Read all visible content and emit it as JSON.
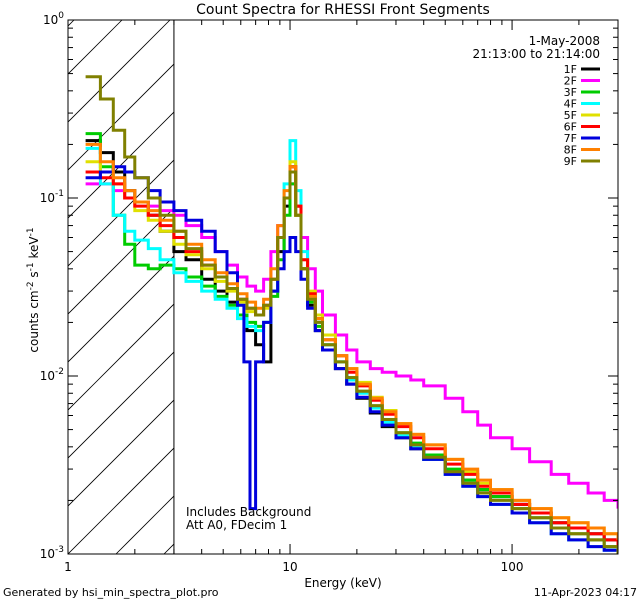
{
  "chart_data": {
    "type": "line",
    "title": "Count Spectra for RHESSI Front Segments",
    "xlabel": "Energy (keV)",
    "ylabel": {
      "base": "counts cm",
      "exp1": "-2",
      "mid1": " s",
      "exp2": "-1",
      "mid2": " keV",
      "exp3": "-1"
    },
    "xscale": "log",
    "yscale": "log",
    "xlim": [
      1,
      300
    ],
    "ylim": [
      0.001,
      1
    ],
    "x_ticks": [
      {
        "value": 1,
        "label": "1"
      },
      {
        "value": 10,
        "label": "10"
      },
      {
        "value": 100,
        "label": "100"
      }
    ],
    "y_ticks": [
      {
        "value": 1,
        "mant": "10",
        "exp": "0"
      },
      {
        "value": 0.1,
        "mant": "10",
        "exp": "-1"
      },
      {
        "value": 0.01,
        "mant": "10",
        "exp": "-2"
      },
      {
        "value": 0.001,
        "mant": "10",
        "exp": "-3"
      }
    ],
    "date": "1-May-2008",
    "time_range": "21:13:00 to 21:14:00",
    "annotations": [
      "Includes Background",
      "Att A0, FDecim 1"
    ],
    "hatched_region_xmax": 3,
    "series": [
      {
        "name": "1F",
        "color": "#000000",
        "e": [
          1.2,
          1.4,
          1.6,
          1.8,
          2.0,
          2.3,
          2.6,
          3.0,
          3.4,
          4.0,
          4.6,
          5.2,
          5.8,
          6.4,
          7.0,
          7.6,
          8.2,
          8.8,
          9.4,
          10.0,
          10.6,
          11.2,
          12,
          13,
          14,
          16,
          18,
          20,
          23,
          26,
          30,
          35,
          40,
          50,
          60,
          70,
          80,
          100,
          120,
          150,
          180,
          220,
          260,
          300
        ],
        "v": [
          0.21,
          0.18,
          0.14,
          0.11,
          0.095,
          0.08,
          0.065,
          0.05,
          0.045,
          0.035,
          0.03,
          0.026,
          0.022,
          0.018,
          0.015,
          0.012,
          0.03,
          0.05,
          0.09,
          0.15,
          0.09,
          0.04,
          0.025,
          0.018,
          0.014,
          0.011,
          0.009,
          0.0075,
          0.0062,
          0.0052,
          0.0045,
          0.0039,
          0.0034,
          0.0029,
          0.0026,
          0.0023,
          0.0021,
          0.0019,
          0.0017,
          0.0015,
          0.0014,
          0.0013,
          0.0012,
          0.0011
        ]
      },
      {
        "name": "2F",
        "color": "#ff00ff",
        "e": [
          1.2,
          1.4,
          1.6,
          1.8,
          2.0,
          2.3,
          2.6,
          3.0,
          3.4,
          4.0,
          4.6,
          5.2,
          5.8,
          6.4,
          7.0,
          7.6,
          8.2,
          8.8,
          9.4,
          10.0,
          10.6,
          11.2,
          12,
          13,
          14,
          16,
          18,
          20,
          23,
          26,
          30,
          35,
          40,
          50,
          60,
          70,
          80,
          100,
          120,
          150,
          180,
          220,
          260,
          300
        ],
        "v": [
          0.12,
          0.12,
          0.11,
          0.1,
          0.095,
          0.09,
          0.085,
          0.08,
          0.07,
          0.06,
          0.05,
          0.042,
          0.036,
          0.032,
          0.03,
          0.035,
          0.05,
          0.07,
          0.1,
          0.12,
          0.09,
          0.06,
          0.04,
          0.03,
          0.022,
          0.017,
          0.014,
          0.012,
          0.011,
          0.0105,
          0.01,
          0.0095,
          0.0088,
          0.0075,
          0.0063,
          0.0053,
          0.0045,
          0.0039,
          0.0033,
          0.0028,
          0.0025,
          0.0022,
          0.002,
          0.0018
        ]
      },
      {
        "name": "3F",
        "color": "#00cc00",
        "e": [
          1.2,
          1.4,
          1.6,
          1.8,
          2.0,
          2.3,
          2.6,
          3.0,
          3.4,
          4.0,
          4.6,
          5.2,
          5.8,
          6.4,
          7.0,
          7.6,
          8.2,
          8.8,
          9.4,
          10.0,
          10.6,
          11.2,
          12,
          13,
          14,
          16,
          18,
          20,
          23,
          26,
          30,
          35,
          40,
          50,
          60,
          70,
          80,
          100,
          120,
          150,
          180,
          220,
          260,
          300
        ],
        "v": [
          0.23,
          0.15,
          0.08,
          0.055,
          0.042,
          0.04,
          0.042,
          0.04,
          0.036,
          0.032,
          0.028,
          0.025,
          0.022,
          0.02,
          0.019,
          0.02,
          0.028,
          0.045,
          0.08,
          0.12,
          0.08,
          0.04,
          0.026,
          0.019,
          0.015,
          0.012,
          0.0098,
          0.0082,
          0.0068,
          0.0057,
          0.0048,
          0.0042,
          0.0036,
          0.003,
          0.0026,
          0.0023,
          0.0021,
          0.0018,
          0.0016,
          0.0014,
          0.0013,
          0.0012,
          0.0011,
          0.001
        ]
      },
      {
        "name": "4F",
        "color": "#00ffff",
        "e": [
          1.2,
          1.4,
          1.6,
          1.8,
          2.0,
          2.3,
          2.6,
          3.0,
          3.4,
          4.0,
          4.6,
          5.2,
          5.8,
          6.4,
          7.0,
          7.6,
          8.2,
          8.8,
          9.4,
          10.0,
          10.6,
          11.2,
          12,
          13,
          14,
          16,
          18,
          20,
          23,
          26,
          30,
          35,
          40,
          50,
          60,
          70,
          80,
          100,
          120,
          150,
          180,
          220,
          260,
          300
        ],
        "v": [
          0.19,
          0.12,
          0.08,
          0.065,
          0.058,
          0.052,
          0.045,
          0.038,
          0.034,
          0.03,
          0.027,
          0.024,
          0.021,
          0.019,
          0.018,
          0.02,
          0.03,
          0.06,
          0.12,
          0.21,
          0.11,
          0.05,
          0.028,
          0.02,
          0.015,
          0.012,
          0.0095,
          0.008,
          0.0066,
          0.0055,
          0.0046,
          0.004,
          0.0034,
          0.0028,
          0.0024,
          0.0021,
          0.0019,
          0.0017,
          0.0015,
          0.0013,
          0.0012,
          0.0011,
          0.00105,
          0.001
        ]
      },
      {
        "name": "5F",
        "color": "#e0e000",
        "e": [
          1.2,
          1.4,
          1.6,
          1.8,
          2.0,
          2.3,
          2.6,
          3.0,
          3.4,
          4.0,
          4.6,
          5.2,
          5.8,
          6.4,
          7.0,
          7.6,
          8.2,
          8.8,
          9.4,
          10.0,
          10.6,
          11.2,
          12,
          13,
          14,
          16,
          18,
          20,
          23,
          26,
          30,
          35,
          40,
          50,
          60,
          70,
          80,
          100,
          120,
          150,
          180,
          220,
          260,
          300
        ],
        "v": [
          0.16,
          0.14,
          0.12,
          0.1,
          0.085,
          0.075,
          0.065,
          0.055,
          0.048,
          0.04,
          0.034,
          0.03,
          0.026,
          0.023,
          0.022,
          0.024,
          0.035,
          0.06,
          0.1,
          0.16,
          0.09,
          0.045,
          0.03,
          0.022,
          0.017,
          0.013,
          0.011,
          0.0092,
          0.0076,
          0.0064,
          0.0054,
          0.0047,
          0.0041,
          0.0034,
          0.0029,
          0.0025,
          0.0023,
          0.002,
          0.0018,
          0.0016,
          0.0015,
          0.0014,
          0.0013,
          0.0012
        ]
      },
      {
        "name": "6F",
        "color": "#ff0000",
        "e": [
          1.2,
          1.4,
          1.6,
          1.8,
          2.0,
          2.3,
          2.6,
          3.0,
          3.4,
          4.0,
          4.6,
          5.2,
          5.8,
          6.4,
          7.0,
          7.6,
          8.2,
          8.8,
          9.4,
          10.0,
          10.6,
          11.2,
          12,
          13,
          14,
          16,
          18,
          20,
          23,
          26,
          30,
          35,
          40,
          50,
          60,
          70,
          80,
          100,
          120,
          150,
          180,
          220,
          260,
          300
        ],
        "v": [
          0.14,
          0.13,
          0.12,
          0.1,
          0.09,
          0.08,
          0.07,
          0.06,
          0.05,
          0.042,
          0.036,
          0.031,
          0.027,
          0.024,
          0.022,
          0.025,
          0.035,
          0.06,
          0.1,
          0.15,
          0.09,
          0.045,
          0.029,
          0.021,
          0.016,
          0.013,
          0.0105,
          0.0088,
          0.0073,
          0.0061,
          0.0052,
          0.0045,
          0.0039,
          0.0032,
          0.0028,
          0.0024,
          0.0022,
          0.0019,
          0.0017,
          0.0015,
          0.0014,
          0.0013,
          0.0012,
          0.0011
        ]
      },
      {
        "name": "7F",
        "color": "#0000dd",
        "e": [
          1.2,
          1.4,
          1.6,
          1.8,
          2.0,
          2.3,
          2.6,
          3.0,
          3.4,
          4.0,
          4.6,
          5.2,
          5.8,
          6.2,
          6.6,
          7.0,
          7.6,
          8.2,
          8.8,
          9.4,
          10.0,
          10.6,
          11.2,
          12,
          13,
          14,
          16,
          18,
          20,
          23,
          26,
          30,
          35,
          40,
          50,
          60,
          70,
          80,
          100,
          120,
          150,
          180,
          220,
          260,
          300
        ],
        "v": [
          0.13,
          0.14,
          0.15,
          0.14,
          0.13,
          0.11,
          0.095,
          0.085,
          0.075,
          0.065,
          0.05,
          0.038,
          0.025,
          0.012,
          0.0018,
          0.012,
          0.02,
          0.03,
          0.04,
          0.05,
          0.06,
          0.05,
          0.035,
          0.024,
          0.018,
          0.014,
          0.011,
          0.009,
          0.0076,
          0.0063,
          0.0053,
          0.0045,
          0.0039,
          0.0034,
          0.0028,
          0.0024,
          0.0021,
          0.0019,
          0.0017,
          0.0015,
          0.0013,
          0.0012,
          0.0011,
          0.00105,
          0.001
        ]
      },
      {
        "name": "8F",
        "color": "#ff8000",
        "e": [
          1.2,
          1.4,
          1.6,
          1.8,
          2.0,
          2.3,
          2.6,
          3.0,
          3.4,
          4.0,
          4.6,
          5.2,
          5.8,
          6.4,
          7.0,
          7.6,
          8.2,
          8.8,
          9.4,
          10.0,
          10.6,
          11.2,
          12,
          13,
          14,
          16,
          18,
          20,
          23,
          26,
          30,
          35,
          40,
          50,
          60,
          70,
          80,
          100,
          120,
          150,
          180,
          220,
          260,
          300
        ],
        "v": [
          0.2,
          0.16,
          0.13,
          0.11,
          0.095,
          0.085,
          0.075,
          0.065,
          0.055,
          0.045,
          0.038,
          0.033,
          0.029,
          0.026,
          0.024,
          0.027,
          0.04,
          0.07,
          0.11,
          0.15,
          0.08,
          0.04,
          0.028,
          0.021,
          0.016,
          0.013,
          0.011,
          0.009,
          0.0075,
          0.0063,
          0.0054,
          0.0047,
          0.0041,
          0.0034,
          0.003,
          0.0026,
          0.0023,
          0.002,
          0.0018,
          0.0016,
          0.0015,
          0.0014,
          0.0013,
          0.0012
        ]
      },
      {
        "name": "9F",
        "color": "#808000",
        "e": [
          1.2,
          1.4,
          1.6,
          1.8,
          2.0,
          2.3,
          2.6,
          3.0,
          3.4,
          4.0,
          4.6,
          5.2,
          5.8,
          6.4,
          7.0,
          7.6,
          8.2,
          8.8,
          9.4,
          10.0,
          10.6,
          11.2,
          12,
          13,
          14,
          16,
          18,
          20,
          23,
          26,
          30,
          35,
          40,
          50,
          60,
          70,
          80,
          100,
          120,
          150,
          180,
          220,
          260,
          300
        ],
        "v": [
          0.48,
          0.36,
          0.24,
          0.17,
          0.13,
          0.1,
          0.08,
          0.065,
          0.052,
          0.042,
          0.036,
          0.031,
          0.027,
          0.024,
          0.022,
          0.025,
          0.035,
          0.06,
          0.1,
          0.14,
          0.08,
          0.04,
          0.027,
          0.02,
          0.015,
          0.012,
          0.0098,
          0.0082,
          0.0068,
          0.0057,
          0.0048,
          0.0041,
          0.0035,
          0.0029,
          0.0025,
          0.0022,
          0.002,
          0.0018,
          0.0016,
          0.0014,
          0.0013,
          0.0012,
          0.0011,
          0.001
        ]
      }
    ]
  },
  "footer": {
    "generator": "Generated by hsi_min_spectra_plot.pro",
    "timestamp": "11-Apr-2023 04:17"
  }
}
